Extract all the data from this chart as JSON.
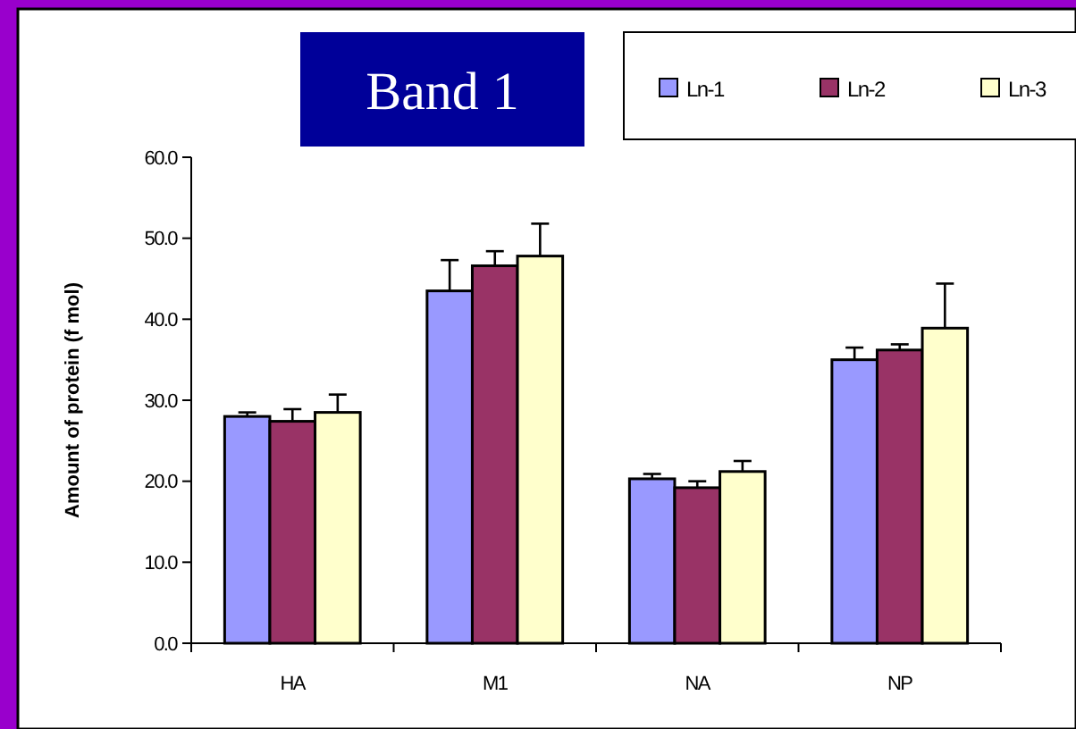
{
  "chart_data": {
    "type": "bar",
    "title": "Band 1",
    "ylabel": "Amount of protein (f mol)",
    "categories": [
      "HA",
      "M1",
      "NA",
      "NP"
    ],
    "series": [
      {
        "name": "Ln-1",
        "color": "#9999ff",
        "values": [
          28.0,
          43.5,
          20.3,
          35.0
        ],
        "errors": [
          [
            28.0,
            28.5
          ],
          [
            43.5,
            47.3
          ],
          [
            20.3,
            20.9
          ],
          [
            35.0,
            36.5
          ]
        ]
      },
      {
        "name": "Ln-2",
        "color": "#993366",
        "values": [
          27.4,
          46.6,
          19.2,
          36.2
        ],
        "errors": [
          [
            27.4,
            28.9
          ],
          [
            46.6,
            48.4
          ],
          [
            19.2,
            20.0
          ],
          [
            36.2,
            36.9
          ]
        ]
      },
      {
        "name": "Ln-3",
        "color": "#ffffcc",
        "values": [
          28.5,
          47.8,
          21.2,
          38.9
        ],
        "errors": [
          [
            28.5,
            30.7
          ],
          [
            47.8,
            51.8
          ],
          [
            21.2,
            22.5
          ],
          [
            38.9,
            44.4
          ]
        ]
      }
    ],
    "ylim": [
      0,
      60
    ],
    "yticks": [
      {
        "value": 0,
        "label": "0.0"
      },
      {
        "value": 10,
        "label": "10.0"
      },
      {
        "value": 20,
        "label": "20.0"
      },
      {
        "value": 30,
        "label": "30.0"
      },
      {
        "value": 40,
        "label": "40.0"
      },
      {
        "value": 50,
        "label": "50.0"
      },
      {
        "value": 60,
        "label": "60.0"
      }
    ],
    "grid": false,
    "legend": "top right"
  }
}
